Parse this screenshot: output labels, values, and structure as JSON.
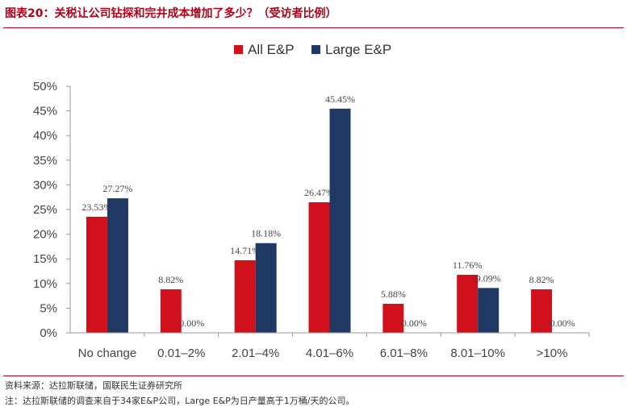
{
  "header": {
    "title": "图表20：关税让公司钻探和完井成本增加了多少？（受访者比例）"
  },
  "footer": {
    "source": "资料来源：达拉斯联储，国联民生证券研究所",
    "note": "注：达拉斯联储的调查来自于34家E&P公司，Large E&P为日产量高于1万桶/天的公司。"
  },
  "colors": {
    "all": "#d0101b",
    "large": "#1f3864"
  },
  "chart_data": {
    "type": "bar",
    "categories": [
      "No change",
      "0.01–2%",
      "2.01–4%",
      "4.01–6%",
      "6.01–8%",
      "8.01–10%",
      ">10%"
    ],
    "series": [
      {
        "name": "All E&P",
        "values": [
          23.53,
          8.82,
          14.71,
          26.47,
          5.88,
          11.76,
          8.82
        ],
        "labels": [
          "23.53%",
          "8.82%",
          "14.71%",
          "26.47%",
          "5.88%",
          "11.76%",
          "8.82%"
        ]
      },
      {
        "name": "Large E&P",
        "values": [
          27.27,
          0.0,
          18.18,
          45.45,
          0.0,
          9.09,
          0.0
        ],
        "labels": [
          "27.27%",
          "0.00%",
          "18.18%",
          "45.45%",
          "0.00%",
          "9.09%",
          "0.00%"
        ]
      }
    ],
    "yticks": [
      "0%",
      "5%",
      "10%",
      "15%",
      "20%",
      "25%",
      "30%",
      "35%",
      "40%",
      "45%",
      "50%"
    ],
    "ylim": [
      0,
      50
    ],
    "legend": "top-center",
    "grid": false
  }
}
